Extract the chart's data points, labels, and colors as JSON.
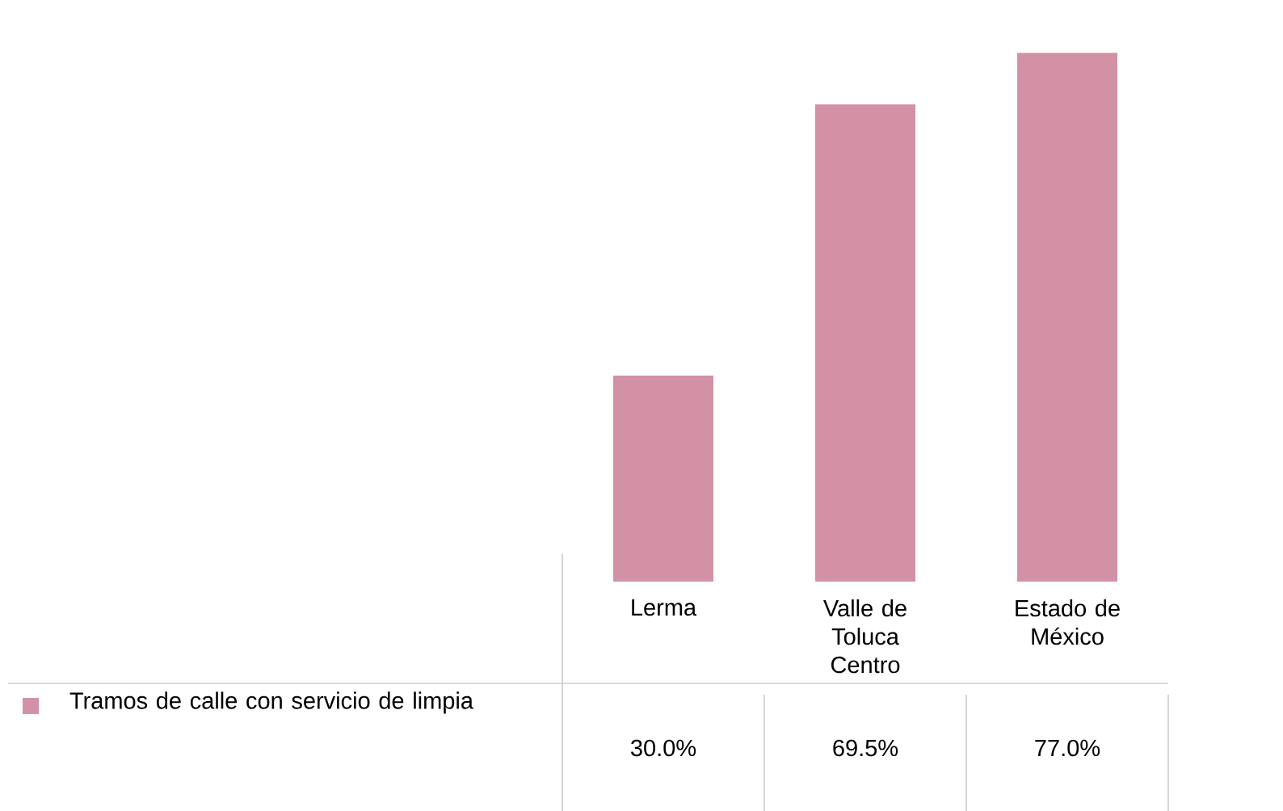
{
  "chart_data": {
    "type": "bar",
    "categories": [
      "Lerma",
      "Valle de Toluca Centro",
      "Estado de México"
    ],
    "series": [
      {
        "name": "Tramos de calle con servicio de limpia",
        "color": "#d291a4",
        "values": [
          30.0,
          69.5,
          77.0
        ],
        "value_labels": [
          "30.0%",
          "69.5%",
          "77.0%"
        ]
      }
    ],
    "legend": "bottom left"
  }
}
